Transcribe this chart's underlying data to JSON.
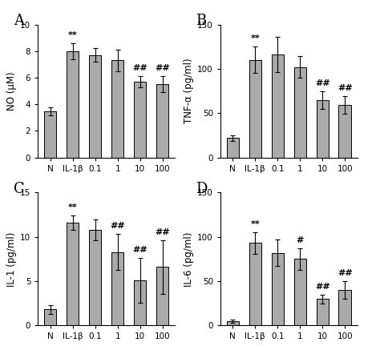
{
  "panels": [
    {
      "label": "A",
      "ylabel": "NO (μM)",
      "ylim": [
        0,
        10
      ],
      "yticks": [
        0,
        2,
        4,
        6,
        8,
        10
      ],
      "categories": [
        "N",
        "IL-1β",
        "0.1",
        "1",
        "10",
        "100"
      ],
      "values": [
        3.5,
        8.0,
        7.7,
        7.3,
        5.7,
        5.5
      ],
      "errors": [
        0.3,
        0.6,
        0.5,
        0.8,
        0.4,
        0.6
      ],
      "annotations": [
        "",
        "**",
        "",
        "",
        "##",
        "##"
      ]
    },
    {
      "label": "B",
      "ylabel": "TNF-α (pg/ml)",
      "ylim": [
        0,
        150
      ],
      "yticks": [
        0,
        50,
        100,
        150
      ],
      "categories": [
        "N",
        "IL-1β",
        "0.1",
        "1",
        "10",
        "100"
      ],
      "values": [
        22,
        110,
        116,
        102,
        65,
        59
      ],
      "errors": [
        3,
        15,
        20,
        12,
        10,
        10
      ],
      "annotations": [
        "",
        "**",
        "",
        "",
        "##",
        "##"
      ]
    },
    {
      "label": "C",
      "ylabel": "IL-1 (pg/ml)",
      "ylim": [
        0,
        15
      ],
      "yticks": [
        0,
        5,
        10,
        15
      ],
      "categories": [
        "N",
        "IL-1β",
        "0.1",
        "1",
        "10",
        "100"
      ],
      "values": [
        1.8,
        11.6,
        10.8,
        8.3,
        5.1,
        6.6
      ],
      "errors": [
        0.5,
        0.8,
        1.2,
        2.0,
        2.5,
        3.0
      ],
      "annotations": [
        "",
        "**",
        "",
        "##",
        "##",
        "##"
      ]
    },
    {
      "label": "D",
      "ylabel": "IL-6 (pg/ml)",
      "ylim": [
        0,
        150
      ],
      "yticks": [
        0,
        50,
        100,
        150
      ],
      "categories": [
        "N",
        "IL-1β",
        "0.1",
        "1",
        "10",
        "100"
      ],
      "values": [
        5,
        93,
        82,
        75,
        30,
        40
      ],
      "errors": [
        1.5,
        12,
        15,
        12,
        5,
        10
      ],
      "annotations": [
        "",
        "**",
        "",
        "#",
        "##",
        "##"
      ]
    }
  ],
  "bar_color": "#aaaaaa",
  "bar_edge_color": "#000000",
  "bar_width": 0.55,
  "capsize": 2.5,
  "ecolor": "#000000",
  "bg_color": "#ffffff",
  "tick_fontsize": 7.5,
  "ylabel_fontsize": 8.5,
  "annot_fontsize": 8,
  "panel_label_fontsize": 13
}
